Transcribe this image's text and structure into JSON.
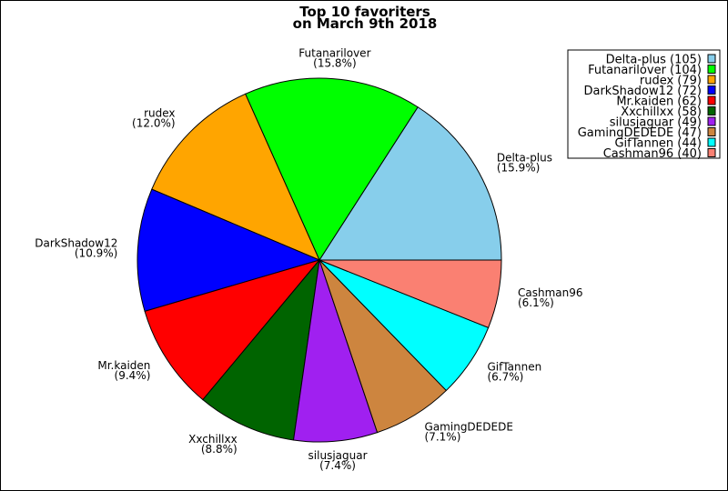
{
  "chart_data": {
    "type": "pie",
    "title": [
      "Top 10 favoriters",
      "on March 9th 2018"
    ],
    "categories": [
      "Delta-plus",
      "Futanarilover",
      "rudex",
      "DarkShadow12",
      "Mr.kaiden",
      "Xxchillxx",
      "silusjaguar",
      "GamingDEDEDE",
      "GifTannen",
      "Cashman96"
    ],
    "values": [
      105,
      104,
      79,
      72,
      62,
      58,
      49,
      47,
      44,
      40
    ],
    "percent_labels": [
      "(15.9%)",
      "(15.8%)",
      "(12.0%)",
      "(10.9%)",
      "(9.4%)",
      "(8.8%)",
      "(7.4%)",
      "(7.1%)",
      "(6.7%)",
      "(6.1%)"
    ],
    "legend_labels": [
      "Delta-plus (105)",
      "Futanarilover (104)",
      "rudex (79)",
      "DarkShadow12 (72)",
      "Mr.kaiden (62)",
      "Xxchillxx (58)",
      "silusjaguar (49)",
      "GamingDEDEDE (47)",
      "GifTannen (44)",
      "Cashman96 (40)"
    ],
    "colors": [
      "#87ceeb",
      "#00ff00",
      "#ffa500",
      "#0000ff",
      "#ff0000",
      "#006400",
      "#a020f0",
      "#cd853f",
      "#00ffff",
      "#fa8072"
    ],
    "legend_position": "top-right",
    "start_angle": "east, counter-clockwise"
  }
}
